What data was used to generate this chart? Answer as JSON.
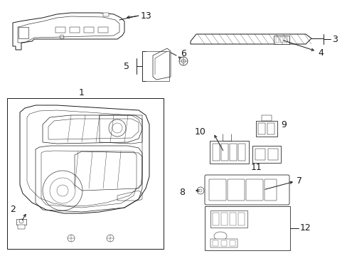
{
  "bg": "#ffffff",
  "lc": "#1a1a1a",
  "lw": 0.7,
  "figsize": [
    4.89,
    3.6
  ],
  "dpi": 100
}
